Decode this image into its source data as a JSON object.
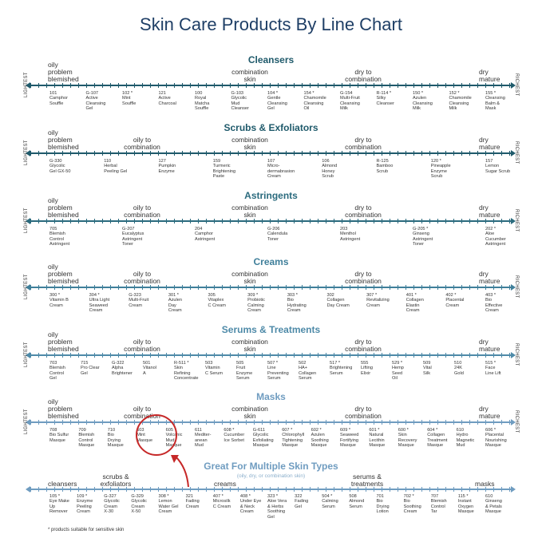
{
  "title": "Skin Care Products By Line Chart",
  "side_labels": {
    "left": "LIGHTEST",
    "right": "RICHEST"
  },
  "colors": {
    "title": "#1f3f66",
    "cleansers": "#1f5a6b",
    "scrubs": "#1f5a6b",
    "astringents": "#2b6b7e",
    "creams": "#3f7f9a",
    "serums": "#4e8aa8",
    "masks": "#6f9cc0",
    "multi": "#6f9cc0",
    "highlight": "#c62828"
  },
  "sections": [
    {
      "id": "cleansers",
      "title": "Cleansers",
      "headers": {
        "oily": "oily\nproblem\nblemished",
        "oily_to_combo": "",
        "combo": "combination\nskin",
        "dry_to_combo": "dry to\ncombination",
        "dry": "dry\nmature"
      },
      "products": [
        "101\nCamphor\nSouffle",
        "G-107\nActive\nCleansing\nGel",
        "102 *\nMint\nSouffle",
        "121\nActive\nCharcoal",
        "100\nRoyal\nMatcha\nSouffle",
        "G-103\nGlycolic\nMud\nCleanser",
        "104 *\nGentle\nCleansing\nGel",
        "154 *\nChamomile\nCleansing\nOil",
        "G-154\nMulti-Fruit\nCleansing\nMilk",
        "R-114 *\nSilky\nCleanser",
        "150 *\nAzulen\nCleansing\nMilk",
        "152 *\nChamomile\nCleansing\nMilk",
        "155 *\nCleansing\nBalm &\nMask"
      ]
    },
    {
      "id": "scrubs",
      "title": "Scrubs & Exfoliators",
      "headers": {
        "oily": "oily\nproblem\nblemished",
        "oily_to_combo": "oily to\ncombination",
        "combo": "combination\nskin",
        "dry_to_combo": "dry to\ncombination",
        "dry": "dry\nmature"
      },
      "products": [
        "G-330\nGlycolic\nGel GX-50",
        "110\nHerbal\nPeeling Gel",
        "127\nPumpkin\nEnzyme",
        "159\nTurmeric\nBrightening\nPaste",
        "107\nMicro-\ndermabrasion\nCream",
        "106\nAlmond\nHoney\nScrub",
        "R-125\nBamboo\nScrub",
        "120 *\nPineapple\nEnzyme\nScrub",
        "157\nLemon\nSugar Scrub"
      ]
    },
    {
      "id": "astringents",
      "title": "Astringents",
      "headers": {
        "oily": "oily\nproblem\nblemished",
        "oily_to_combo": "oily to\ncombination",
        "combo": "combination\nskin",
        "dry_to_combo": "dry to\ncombination",
        "dry": "dry\nmature"
      },
      "products": [
        "705\nBlemish\nControl\nAstringent",
        "G-207\nEucalyptus\nAstringent\nToner",
        "204\nCamphor\nAstringent",
        "G-206\nCalendula\nToner",
        "203\nMenthol\nAstringent",
        "G-205 *\nGinseng\nAstringent\nToner",
        "202 *\nAloe\nCucumber\nAstringent"
      ]
    },
    {
      "id": "creams",
      "title": "Creams",
      "headers": {
        "oily": "oily\nproblem\nblemished",
        "oily_to_combo": "oily to\ncombination",
        "combo": "combination\nskin",
        "dry_to_combo": "dry to\ncombination",
        "dry": "dry\nmature"
      },
      "products": [
        "300 *\nVitamin B\nCream",
        "304 *\nUltra Light\nSeaweed\nCream",
        "G-323\nMulti-Fruit\nCream",
        "301 *\nAzulen\nDay\nCream",
        "305\nVitaplex\nC Cream",
        "309 *\nProbiotic\nCalming\nCream",
        "303 *\nBio\nHydrating\nCream",
        "302\nCollagen\nDay Cream",
        "307 *\nRevitalizing\nCream",
        "401 *\nCollagen\nElastin\nCream",
        "402 *\nPlacental\nCream",
        "403 *\nBio\nEffective\nCream"
      ]
    },
    {
      "id": "serums",
      "title": "Serums & Treatments",
      "headers": {
        "oily": "oily\nproblem\nblemished",
        "oily_to_combo": "oily to\ncombination",
        "combo": "combination\nskin",
        "dry_to_combo": "dry to\ncombination",
        "dry": "dry\nmature"
      },
      "products": [
        "703\nBlemish\nControl\nGel",
        "715\nPro Clear\nGel",
        "G-322\nAlpha\nBrightener",
        "501\nVitanol\nA",
        "R-511 *\nSkin\nRefining\nConcentrate",
        "503\nVitamin\nC Serum",
        "505\nFruit\nEnzyme\nSerum",
        "507 *\nLine\nPreventing\nSerum",
        "502\nHA+\nCollagen\nSerum",
        "517 *\nBrightening\nSerum",
        "555\nLifting\nElixir",
        "529 *\nHemp\nSeed\nOil",
        "509\nVital\nSilk",
        "510\n24K\nGold",
        "515 *\nFace\nLine Lift"
      ]
    },
    {
      "id": "masks",
      "title": "Masks",
      "headers": {
        "oily": "oily\nproblem\nblemished",
        "oily_to_combo": "oily to\ncombination",
        "combo": "combination\nskin",
        "dry_to_combo": "dry to\ncombination",
        "dry": "dry\nmature"
      },
      "products": [
        "708\nBio Sulfur\nMasque",
        "709\nBlemish\nControl\nMasque",
        "710\nBio\nDrying\nMasque",
        "603\nMint\nMasque",
        "605 *\nVolcanic\nMud\nMasque",
        "611\nMediter-\nanean\nMud",
        "608 *\nCucumber\nIce Sorbet",
        "G-611\nGlycolic\nExfoliating\nMasque",
        "607 *\nChlorophyll\nTightening\nMasque",
        "602 *\nAzulen\nSoothing\nMasque",
        "609 *\nSeaweed\nFortifying\nMasque",
        "601 *\nNatural\nLecithin\nMasque",
        "600 *\nSkin\nRecovery\nMasque",
        "604 *\nCollagen\nTreatment\nMasque",
        "610\nHydro\nMagnetic\nMud",
        "606 *\nPlacental\nNourishing\nMasque"
      ]
    }
  ],
  "multi": {
    "title": "Great For Multiple Skin Types",
    "subtitle": "(oily, dry, or combination skin)",
    "headers": {
      "cleansers": "cleansers",
      "scrubs": "scrubs &\nexfoliators",
      "creams": "creams",
      "serums": "serums &\ntreatments",
      "masks": "masks"
    },
    "products": [
      "105 *\nEye Make\nUp\nRemover",
      "109 *\nEnzyme\nPeeling\nCream",
      "G-327\nGlycolic\nCream\nX-30",
      "G-329\nGlycolic\nCream\nX-50",
      "308 *\nLemon\nWater Gel\nCream",
      "321\nFading\nCream",
      "407 *\nMicrosilk\nC Cream",
      "408 *\nUnder Eye\n& Neck\nCream",
      "323 *\nAloe Vera\n& Herbs\nSoothing\nGel",
      "322\nFading\nGel",
      "504 *\nCalming\nSerum",
      "508\nAlmond\nSerum",
      "701\nBio\nDrying\nLotion",
      "702 *\nBio\nSoothing\nCream",
      "707\nBlemish\nControl\nTar",
      "115 *\nInstant\nOxygen\nMasque",
      "610\nGinseng\n& Petals\nMasque"
    ]
  },
  "footnote": "* products suitable for sensitive skin"
}
